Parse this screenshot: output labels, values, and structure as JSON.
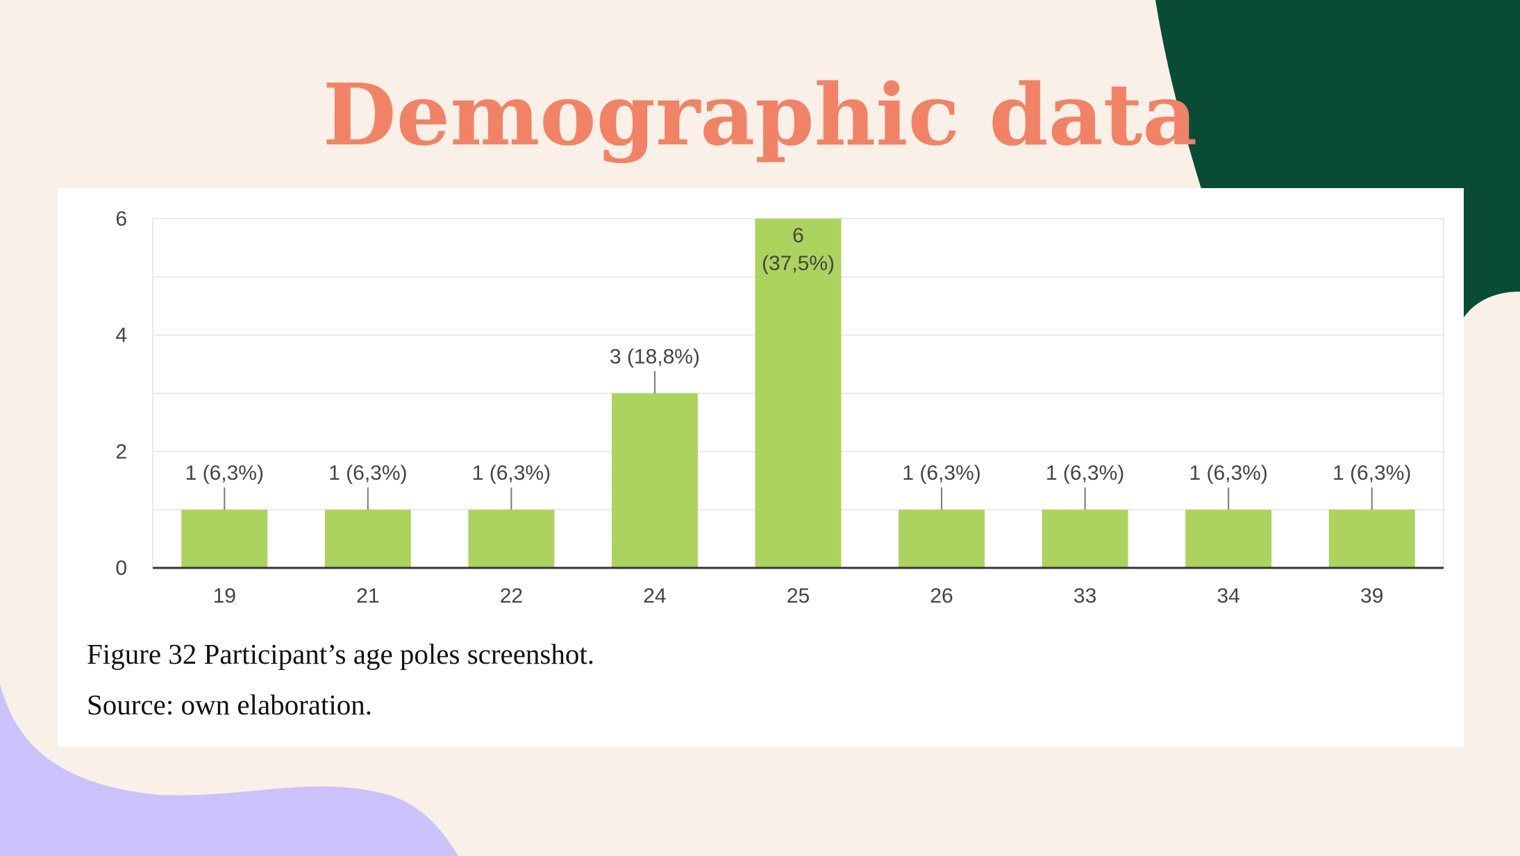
{
  "slide": {
    "title": "Demographic data",
    "colors": {
      "background": "#f9f0e7",
      "title": "#f28266",
      "dark_green_blob": "#084c36",
      "lavender_blob": "#cbc2fb"
    }
  },
  "figure": {
    "caption": "Figure 32 Participant’s age poles screenshot.",
    "source": "Source: own elaboration."
  },
  "chart_data": {
    "type": "bar",
    "title": "",
    "xlabel": "",
    "ylabel": "",
    "categories": [
      "19",
      "21",
      "22",
      "24",
      "25",
      "26",
      "33",
      "34",
      "39"
    ],
    "values": [
      1,
      1,
      1,
      3,
      6,
      1,
      1,
      1,
      1
    ],
    "data_labels": [
      "1 (6,3%)",
      "1 (6,3%)",
      "1 (6,3%)",
      "3 (18,8%)",
      "6 (37,5%)",
      "1 (6,3%)",
      "1 (6,3%)",
      "1 (6,3%)",
      "1 (6,3%)"
    ],
    "ylim": [
      0,
      6
    ],
    "yticks": [
      0,
      2,
      4,
      6
    ],
    "grid": true,
    "legend": "none",
    "bar_color": "#acd35d"
  }
}
